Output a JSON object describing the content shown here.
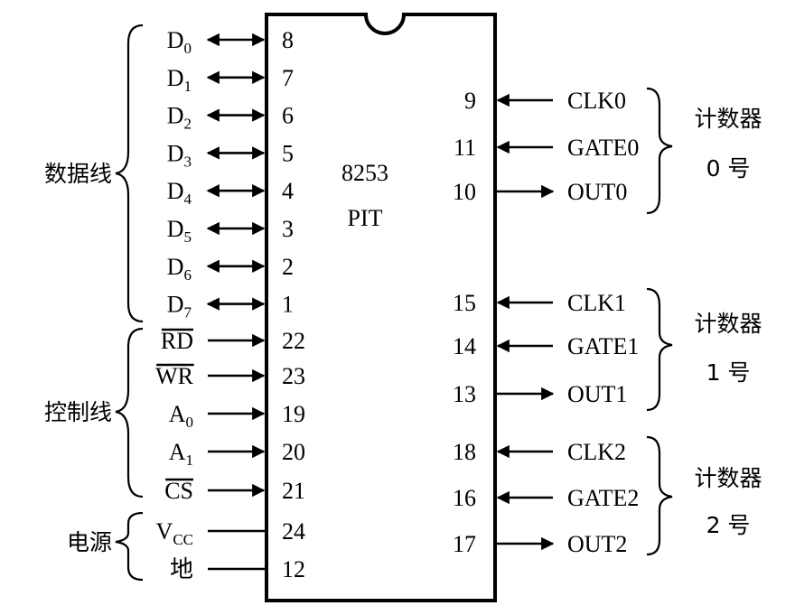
{
  "chip": {
    "label": "8253",
    "sublabel": "PIT"
  },
  "groups": {
    "data": "数据线",
    "control": "控制线",
    "power": "电源"
  },
  "data_pins": [
    {
      "base": "D",
      "sub": "0",
      "pin": "8"
    },
    {
      "base": "D",
      "sub": "1",
      "pin": "7"
    },
    {
      "base": "D",
      "sub": "2",
      "pin": "6"
    },
    {
      "base": "D",
      "sub": "3",
      "pin": "5"
    },
    {
      "base": "D",
      "sub": "4",
      "pin": "4"
    },
    {
      "base": "D",
      "sub": "5",
      "pin": "3"
    },
    {
      "base": "D",
      "sub": "6",
      "pin": "2"
    },
    {
      "base": "D",
      "sub": "7",
      "pin": "1"
    }
  ],
  "control_pins": [
    {
      "base": "RD",
      "sub": "",
      "pin": "22"
    },
    {
      "base": "WR",
      "sub": "",
      "pin": "23"
    },
    {
      "base": "A",
      "sub": "0",
      "pin": "19"
    },
    {
      "base": "A",
      "sub": "1",
      "pin": "20"
    },
    {
      "base": "CS",
      "sub": "",
      "pin": "21"
    }
  ],
  "power_pins": [
    {
      "base": "V",
      "sub": "CC",
      "pin": "24"
    },
    {
      "base": "地",
      "sub": "",
      "pin": "12"
    }
  ],
  "counters": [
    {
      "title": "计数器",
      "number": "0 号",
      "pins": [
        {
          "pin": "9",
          "name": "CLK0"
        },
        {
          "pin": "11",
          "name": "GATE0"
        },
        {
          "pin": "10",
          "name": "OUT0"
        }
      ]
    },
    {
      "title": "计数器",
      "number": "1 号",
      "pins": [
        {
          "pin": "15",
          "name": "CLK1"
        },
        {
          "pin": "14",
          "name": "GATE1"
        },
        {
          "pin": "13",
          "name": "OUT1"
        }
      ]
    },
    {
      "title": "计数器",
      "number": "2 号",
      "pins": [
        {
          "pin": "18",
          "name": "CLK2"
        },
        {
          "pin": "16",
          "name": "GATE2"
        },
        {
          "pin": "17",
          "name": "OUT2"
        }
      ]
    }
  ]
}
